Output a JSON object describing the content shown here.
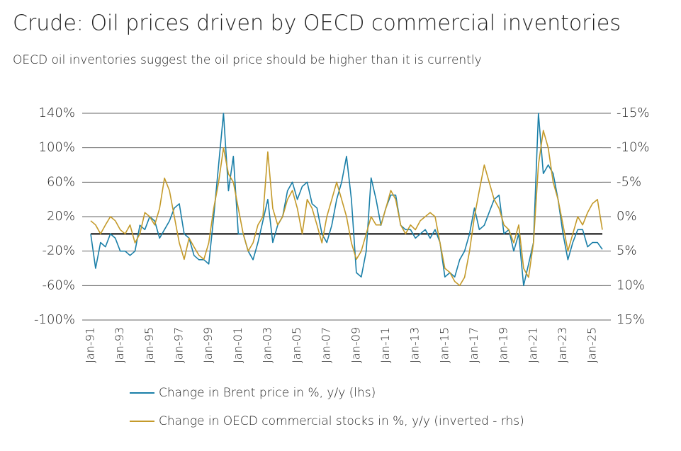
{
  "chart_data": {
    "type": "line",
    "title": "Crude: Oil prices driven by OECD commercial inventories",
    "subtitle": "OECD oil inventories suggest the oil price should be higher than it is currently",
    "categories": [
      "Jan-91",
      null,
      null,
      null,
      null,
      null,
      "Jan-93",
      null,
      null,
      null,
      null,
      null,
      "Jan-95",
      null,
      null,
      null,
      null,
      null,
      "Jan-97",
      null,
      null,
      null,
      null,
      null,
      "Jan-99",
      null,
      null,
      null,
      null,
      null,
      "Jan-01",
      null,
      null,
      null,
      null,
      null,
      "Jan-03",
      null,
      null,
      null,
      null,
      null,
      "Jan-05",
      null,
      null,
      null,
      null,
      null,
      "Jan-07",
      null,
      null,
      null,
      null,
      null,
      "Jan-09",
      null,
      null,
      null,
      null,
      null,
      "Jan-11",
      null,
      null,
      null,
      null,
      null,
      "Jan-13",
      null,
      null,
      null,
      null,
      null,
      "Jan-15",
      null,
      null,
      null,
      null,
      null,
      "Jan-17",
      null,
      null,
      null,
      null,
      null,
      "Jan-19",
      null,
      null,
      null,
      null,
      null,
      "Jan-21",
      null,
      null,
      null,
      null,
      null,
      "Jan-23",
      null,
      null,
      null,
      null,
      null,
      "Jan-25",
      null,
      null
    ],
    "series": [
      {
        "name": "Change in Brent price in %, y/y (lhs)",
        "color": "#1a7fa8",
        "axis": "y",
        "values": [
          0,
          -40,
          -10,
          -15,
          0,
          -5,
          -20,
          -20,
          -25,
          -20,
          10,
          5,
          20,
          15,
          -5,
          5,
          15,
          30,
          35,
          0,
          -5,
          -25,
          -30,
          -30,
          -35,
          20,
          80,
          140,
          50,
          90,
          0,
          0,
          -20,
          -30,
          -10,
          15,
          40,
          -10,
          10,
          20,
          50,
          60,
          40,
          55,
          60,
          35,
          30,
          0,
          -10,
          10,
          40,
          60,
          90,
          40,
          -45,
          -50,
          -20,
          65,
          40,
          10,
          30,
          45,
          45,
          10,
          5,
          5,
          -5,
          0,
          5,
          -5,
          5,
          -10,
          -50,
          -45,
          -50,
          -30,
          -20,
          0,
          30,
          5,
          10,
          25,
          40,
          45,
          0,
          5,
          -20,
          0,
          -60,
          -35,
          -10,
          140,
          70,
          80,
          70,
          40,
          0,
          -30,
          -10,
          5,
          5,
          -15,
          -10,
          -10,
          -18
        ]
      },
      {
        "name": "Change in OECD commercial stocks in %, y/y (inverted - rhs)",
        "color": "#c49a2a",
        "axis": "y2",
        "values": [
          0.6,
          1.2,
          2.5,
          1.2,
          0,
          0.6,
          1.9,
          2.5,
          1.2,
          3.8,
          2.5,
          -0.6,
          0,
          1.2,
          -1.2,
          -5.6,
          -3.8,
          0,
          3.8,
          6.2,
          3.1,
          4.4,
          5.6,
          6.2,
          3.8,
          -1.2,
          -5,
          -10,
          -6.2,
          -5,
          -1.2,
          2.5,
          5,
          3.8,
          1.2,
          0,
          -9.4,
          -1.2,
          1.2,
          0,
          -2.5,
          -3.8,
          -1.2,
          2.5,
          -2.5,
          -1.2,
          1.2,
          3.8,
          0,
          -2.5,
          -5,
          -2.5,
          0,
          3.8,
          6.2,
          5,
          2.5,
          0,
          1.2,
          1.2,
          -1.2,
          -3.8,
          -2.5,
          1.2,
          2.5,
          1.2,
          1.9,
          0.6,
          0,
          -0.6,
          0,
          3.8,
          7.5,
          8.1,
          9.4,
          10,
          8.8,
          5,
          0,
          -3.8,
          -7.5,
          -5,
          -2.5,
          -1.2,
          1.2,
          1.9,
          3.8,
          1.2,
          7.5,
          8.8,
          3.8,
          -7.5,
          -12.5,
          -10,
          -5,
          -2.5,
          1.2,
          5,
          2.5,
          0,
          1.2,
          -0.6,
          -1.9,
          -2.5,
          1.9
        ]
      }
    ],
    "ylim": [
      -100,
      140
    ],
    "yticks": [
      {
        "value": -100,
        "label": "-100%"
      },
      {
        "value": -60,
        "label": "-60%"
      },
      {
        "value": -20,
        "label": "-20%"
      },
      {
        "value": 20,
        "label": "20%"
      },
      {
        "value": 60,
        "label": "60%"
      },
      {
        "value": 100,
        "label": "100%"
      },
      {
        "value": 140,
        "label": "140%"
      }
    ],
    "y2lim": [
      15,
      -15
    ],
    "y2ticks": [
      {
        "value": 15,
        "label": "15%"
      },
      {
        "value": 10,
        "label": "10%"
      },
      {
        "value": 5,
        "label": "5%"
      },
      {
        "value": 0,
        "label": "0%"
      },
      {
        "value": -5,
        "label": "-5%"
      },
      {
        "value": -10,
        "label": "-10%"
      },
      {
        "value": -15,
        "label": "-15%"
      }
    ],
    "grid": true
  }
}
